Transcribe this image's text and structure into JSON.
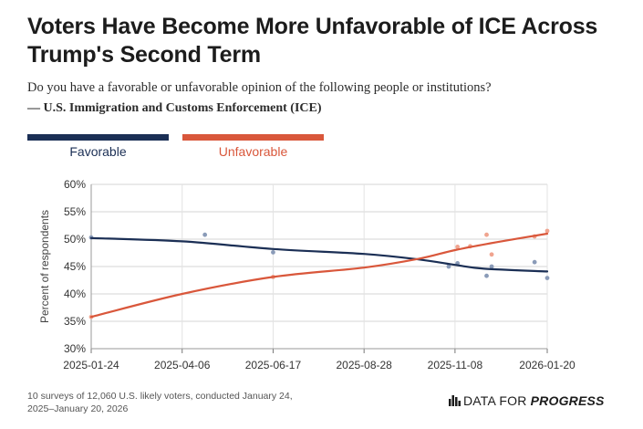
{
  "title": "Voters Have Become More Unfavorable of ICE Across Trump's Second Term",
  "question": "Do you have a favorable or unfavorable opinion of the following people or institutions?",
  "subject": "— U.S. Immigration and Customs Enforcement (ICE)",
  "footnote": "10 surveys of 12,060 U.S. likely voters, conducted January 24, 2025–January 20, 2026",
  "brand": {
    "prefix": "DATA FOR ",
    "emphasis": "PROGRESS",
    "icon": "bar-chart-icon"
  },
  "colors": {
    "favorable": "#1b2f55",
    "unfavorable": "#d9573b",
    "favorable_dot": "#8a9bb8",
    "unfavorable_dot": "#f0a48f"
  },
  "chart_data": {
    "type": "scatter",
    "ylabel": "Percent of respondents",
    "ylim": [
      30,
      60
    ],
    "y_ticks": [
      "30%",
      "35%",
      "40%",
      "45%",
      "50%",
      "55%",
      "60%"
    ],
    "x_ticks": [
      "2025-01-24",
      "2025-04-06",
      "2025-06-17",
      "2025-08-28",
      "2025-11-08",
      "2026-01-20"
    ],
    "grid": true,
    "legend_position": "top-left",
    "series": [
      {
        "name": "Favorable",
        "points": [
          {
            "x": "2025-01-24",
            "y": 50.3
          },
          {
            "x": "2025-04-24",
            "y": 50.8
          },
          {
            "x": "2025-06-17",
            "y": 47.6
          },
          {
            "x": "2025-11-03",
            "y": 45.0
          },
          {
            "x": "2025-11-10",
            "y": 45.6
          },
          {
            "x": "2025-12-03",
            "y": 43.3
          },
          {
            "x": "2025-12-07",
            "y": 45.0
          },
          {
            "x": "2026-01-10",
            "y": 45.8
          },
          {
            "x": "2026-01-20",
            "y": 42.9
          }
        ],
        "trend": [
          {
            "x": "2025-01-24",
            "y": 50.2
          },
          {
            "x": "2025-04-06",
            "y": 49.6
          },
          {
            "x": "2025-06-17",
            "y": 48.2
          },
          {
            "x": "2025-08-28",
            "y": 47.3
          },
          {
            "x": "2025-10-10",
            "y": 46.3
          },
          {
            "x": "2025-11-08",
            "y": 45.3
          },
          {
            "x": "2025-12-01",
            "y": 44.6
          },
          {
            "x": "2026-01-20",
            "y": 44.1
          }
        ]
      },
      {
        "name": "Unfavorable",
        "points": [
          {
            "x": "2025-01-24",
            "y": 35.8
          },
          {
            "x": "2025-06-17",
            "y": 43.1
          },
          {
            "x": "2025-11-10",
            "y": 48.6
          },
          {
            "x": "2025-11-20",
            "y": 48.7
          },
          {
            "x": "2025-12-03",
            "y": 50.8
          },
          {
            "x": "2025-12-07",
            "y": 47.2
          },
          {
            "x": "2026-01-10",
            "y": 50.5
          },
          {
            "x": "2026-01-20",
            "y": 51.5
          }
        ],
        "trend": [
          {
            "x": "2025-01-24",
            "y": 35.8
          },
          {
            "x": "2025-04-06",
            "y": 40.0
          },
          {
            "x": "2025-06-17",
            "y": 43.1
          },
          {
            "x": "2025-08-28",
            "y": 44.8
          },
          {
            "x": "2025-10-10",
            "y": 46.4
          },
          {
            "x": "2025-11-08",
            "y": 48.0
          },
          {
            "x": "2025-12-10",
            "y": 49.4
          },
          {
            "x": "2026-01-20",
            "y": 51.0
          }
        ]
      }
    ]
  }
}
